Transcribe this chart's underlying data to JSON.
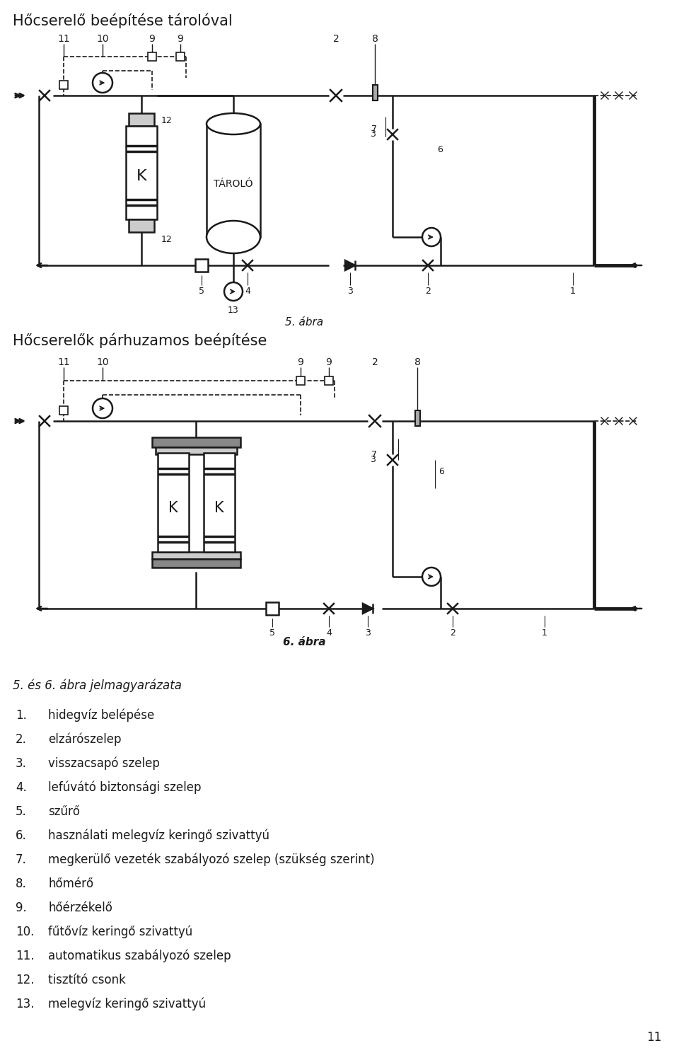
{
  "title1": "Hőcserelő beépítése tárolóval",
  "title2": "Hőcserelők párhuzamos beépítése",
  "caption1": "5. ábra",
  "caption2": "6. ábra",
  "legend_title": "5. és 6. ábra jelmagyarázata",
  "legend_items": [
    {
      "num": "1.",
      "text": "hidegvíz belépése"
    },
    {
      "num": "2.",
      "text": "elzárószelep"
    },
    {
      "num": "3.",
      "text": "visszacsapó szelep"
    },
    {
      "num": "4.",
      "text": "lefúvátó biztonsági szelep"
    },
    {
      "num": "5.",
      "text": "szűrő"
    },
    {
      "num": "6.",
      "text": "használati melegvíz keringő szivattyú"
    },
    {
      "num": "7.",
      "text": "megkerülő vezeték szabályozó szelep (szükség szerint)"
    },
    {
      "num": "8.",
      "text": "hőmérő"
    },
    {
      "num": "9.",
      "text": "hőérzékelő"
    },
    {
      "num": "10.",
      "text": "fűtővíz keringő szivattyú"
    },
    {
      "num": "11.",
      "text": "automatikus szabályozó szelep"
    },
    {
      "num": "12.",
      "text": "tisztító csonk"
    },
    {
      "num": "13.",
      "text": "melegvíz keringő szivattyú"
    }
  ],
  "page_number": "11",
  "bg_color": "#ffffff",
  "text_color": "#1a1a1a",
  "diagram_color": "#1a1a1a",
  "line_width": 1.8
}
